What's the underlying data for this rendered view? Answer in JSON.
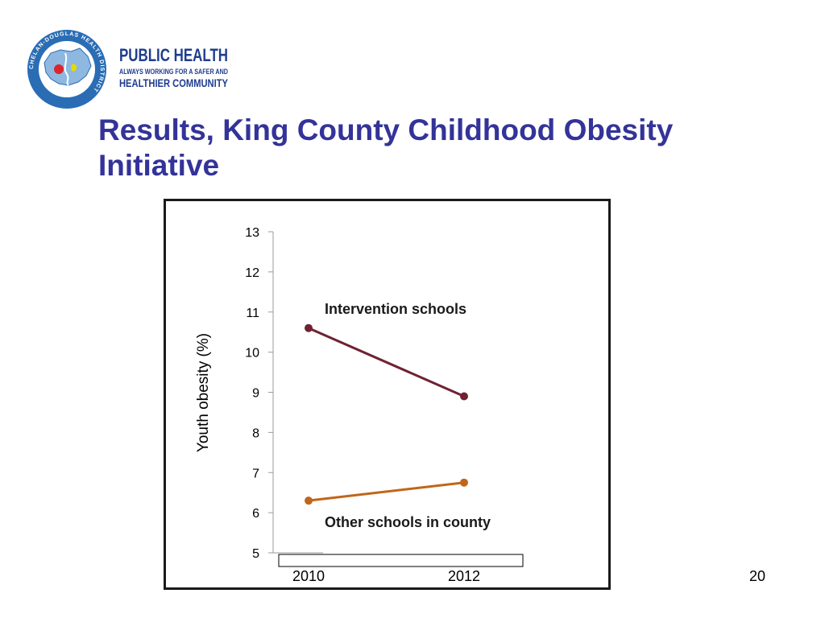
{
  "logo": {
    "ring_text": "CHELAN-DOUGLAS HEALTH DISTRICT",
    "title": "PUBLIC HEALTH",
    "line1": "ALWAYS WORKING FOR A SAFER AND",
    "line2": "HEALTHIER COMMUNITY",
    "colors": {
      "navy": "#1f3d8f",
      "circle": "#2a6db5",
      "apple": "#d9262c",
      "leaf": "#e8d800"
    }
  },
  "slide": {
    "title_line1": "Results, King County Childhood Obesity",
    "title_line2": "Initiative",
    "page_number": "20"
  },
  "chart_data": {
    "type": "line",
    "x": [
      "2010",
      "2012"
    ],
    "ylabel": "Youth obesity (%)",
    "xlabel": "",
    "ylim": [
      5,
      13
    ],
    "yticks": [
      5,
      6,
      7,
      8,
      9,
      10,
      11,
      12,
      13
    ],
    "grid": false,
    "series": [
      {
        "name": "Intervention schools",
        "values": [
          10.6,
          8.9
        ],
        "color": "#6e2232"
      },
      {
        "name": "Other schools in county",
        "values": [
          6.3,
          6.75
        ],
        "color": "#c0661a"
      }
    ]
  }
}
